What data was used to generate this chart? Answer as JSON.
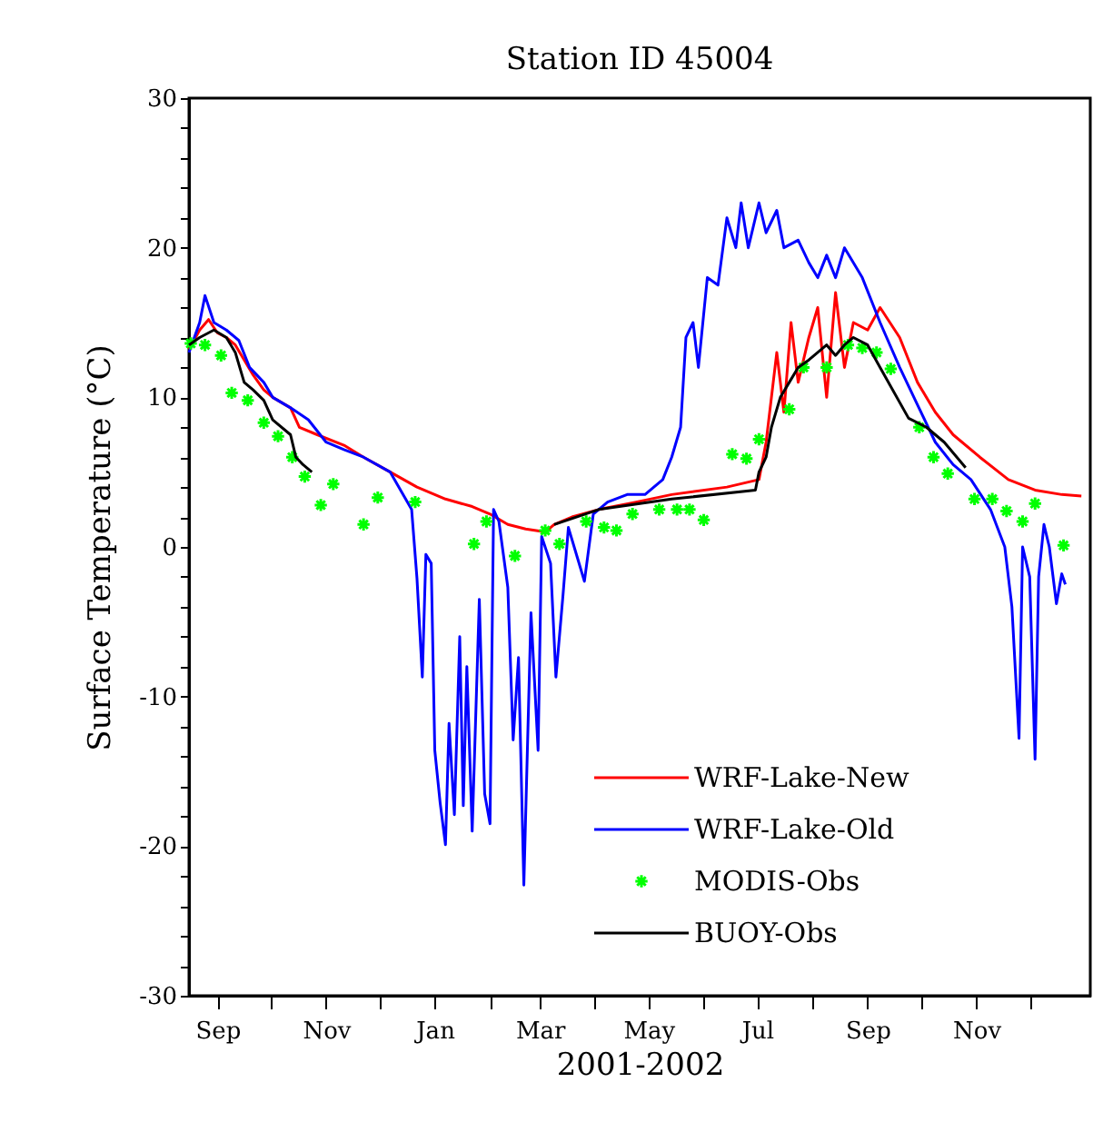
{
  "chart_data": {
    "type": "line",
    "title": "Station ID 45004",
    "xlabel": "2001-2002",
    "ylabel": "Surface Temperature (°C)",
    "xlim": [
      "2001-08-16",
      "2003-01-04"
    ],
    "ylim": [
      -30,
      30
    ],
    "xticks": [
      {
        "value": "2001-09-01",
        "label": "Sep"
      },
      {
        "value": "2001-10-01",
        "label": null
      },
      {
        "value": "2001-11-01",
        "label": "Nov"
      },
      {
        "value": "2001-12-01",
        "label": null
      },
      {
        "value": "2002-01-01",
        "label": "Jan"
      },
      {
        "value": "2002-02-01",
        "label": null
      },
      {
        "value": "2002-03-01",
        "label": "Mar"
      },
      {
        "value": "2002-04-01",
        "label": null
      },
      {
        "value": "2002-05-01",
        "label": "May"
      },
      {
        "value": "2002-06-01",
        "label": null
      },
      {
        "value": "2002-07-01",
        "label": "Jul"
      },
      {
        "value": "2002-08-01",
        "label": null
      },
      {
        "value": "2002-09-01",
        "label": "Sep"
      },
      {
        "value": "2002-10-01",
        "label": null
      },
      {
        "value": "2002-11-01",
        "label": "Nov"
      },
      {
        "value": "2002-12-01",
        "label": null
      }
    ],
    "yticks": [
      -30,
      {
        "value": -28,
        "label": null
      },
      {
        "value": -26,
        "label": null
      },
      {
        "value": -24,
        "label": null
      },
      {
        "value": -22,
        "label": null
      },
      -20,
      {
        "value": -18,
        "label": null
      },
      {
        "value": -16,
        "label": null
      },
      {
        "value": -14,
        "label": null
      },
      {
        "value": -12,
        "label": null
      },
      -10,
      {
        "value": -8,
        "label": null
      },
      {
        "value": -6,
        "label": null
      },
      {
        "value": -4,
        "label": null
      },
      {
        "value": -2,
        "label": null
      },
      0,
      {
        "value": 2,
        "label": null
      },
      {
        "value": 4,
        "label": null
      },
      {
        "value": 6,
        "label": null
      },
      {
        "value": 8,
        "label": null
      },
      10,
      {
        "value": 12,
        "label": null
      },
      {
        "value": 14,
        "label": null
      },
      {
        "value": 16,
        "label": null
      },
      {
        "value": 18,
        "label": null
      },
      20,
      {
        "value": 22,
        "label": null
      },
      {
        "value": 24,
        "label": null
      },
      {
        "value": 26,
        "label": null
      },
      {
        "value": 28,
        "label": null
      },
      30
    ],
    "grid": false,
    "legend": "bottom right",
    "series": [
      {
        "name": "WRF-Lake-New",
        "type": "line",
        "color": "#ff0000",
        "x": [
          "2001-08-16",
          "2001-08-22",
          "2001-08-27",
          "2001-09-01",
          "2001-09-06",
          "2001-09-11",
          "2001-09-16",
          "2001-09-21",
          "2001-09-27",
          "2001-10-02",
          "2001-10-12",
          "2001-10-17",
          "2001-10-27",
          "2001-11-11",
          "2001-11-22",
          "2001-12-07",
          "2001-12-22",
          "2002-01-07",
          "2002-01-22",
          "2002-02-01",
          "2002-02-11",
          "2002-02-21",
          "2002-03-04",
          "2002-03-09",
          "2002-03-19",
          "2002-04-03",
          "2002-04-24",
          "2002-05-14",
          "2002-06-14",
          "2002-07-02",
          "2002-07-06",
          "2002-07-12",
          "2002-07-16",
          "2002-07-20",
          "2002-07-24",
          "2002-07-30",
          "2002-08-04",
          "2002-08-09",
          "2002-08-14",
          "2002-08-19",
          "2002-08-24",
          "2002-09-01",
          "2002-09-08",
          "2002-09-19",
          "2002-09-29",
          "2002-10-09",
          "2002-10-19",
          "2002-11-03",
          "2002-11-19",
          "2002-12-04",
          "2002-12-19",
          "2002-12-30"
        ],
        "values": [
          13.2,
          14.5,
          15.2,
          14.3,
          14.0,
          13.5,
          12.5,
          11.5,
          10.5,
          10.0,
          9.3,
          8.0,
          7.5,
          6.8,
          6.0,
          5.0,
          4.0,
          3.2,
          2.7,
          2.2,
          1.5,
          1.2,
          1.0,
          1.5,
          2.0,
          2.5,
          3.0,
          3.5,
          4.0,
          4.5,
          7.0,
          13.0,
          9.0,
          15.0,
          11.0,
          14.0,
          16.0,
          10.0,
          17.0,
          12.0,
          15.0,
          14.5,
          16.0,
          14.0,
          11.0,
          9.0,
          7.5,
          6.0,
          4.5,
          3.8,
          3.5,
          3.4
        ]
      },
      {
        "name": "WRF-Lake-Old",
        "color": "#0000ff",
        "x": [
          "2001-08-16",
          "2001-08-22",
          "2001-08-25",
          "2001-08-30",
          "2001-09-06",
          "2001-09-13",
          "2001-09-19",
          "2001-09-27",
          "2001-10-02",
          "2001-10-12",
          "2001-10-22",
          "2001-11-01",
          "2001-11-11",
          "2001-11-22",
          "2001-12-07",
          "2001-12-19",
          "2001-12-22",
          "2001-12-25",
          "2001-12-27",
          "2001-12-30",
          "2002-01-01",
          "2002-01-04",
          "2002-01-07",
          "2002-01-09",
          "2002-01-12",
          "2002-01-15",
          "2002-01-17",
          "2002-01-19",
          "2002-01-22",
          "2002-01-26",
          "2002-01-29",
          "2002-02-01",
          "2002-02-03",
          "2002-02-06",
          "2002-02-11",
          "2002-02-14",
          "2002-02-17",
          "2002-02-20",
          "2002-02-24",
          "2002-02-28",
          "2002-03-02",
          "2002-03-07",
          "2002-03-10",
          "2002-03-14",
          "2002-03-17",
          "2002-03-22",
          "2002-03-26",
          "2002-03-31",
          "2002-04-08",
          "2002-04-19",
          "2002-04-29",
          "2002-05-09",
          "2002-05-14",
          "2002-05-19",
          "2002-05-22",
          "2002-05-26",
          "2002-05-29",
          "2002-06-03",
          "2002-06-09",
          "2002-06-14",
          "2002-06-19",
          "2002-06-22",
          "2002-06-26",
          "2002-07-02",
          "2002-07-06",
          "2002-07-12",
          "2002-07-16",
          "2002-07-24",
          "2002-07-30",
          "2002-08-04",
          "2002-08-09",
          "2002-08-14",
          "2002-08-19",
          "2002-08-29",
          "2002-09-08",
          "2002-09-19",
          "2002-09-29",
          "2002-10-09",
          "2002-10-19",
          "2002-10-29",
          "2002-11-09",
          "2002-11-17",
          "2002-11-21",
          "2002-11-25",
          "2002-11-27",
          "2002-12-01",
          "2002-12-04",
          "2002-12-06",
          "2002-12-09",
          "2002-12-12",
          "2002-12-16",
          "2002-12-19",
          "2002-12-21"
        ],
        "values": [
          13.0,
          15.0,
          16.8,
          15.0,
          14.5,
          13.8,
          12.0,
          11.0,
          10.0,
          9.3,
          8.5,
          7.0,
          6.5,
          6.0,
          5.0,
          2.5,
          -2.1,
          -8.7,
          -0.5,
          -1.1,
          -13.6,
          -17.1,
          -19.9,
          -11.8,
          -17.9,
          -6.0,
          -17.3,
          -8.0,
          -19.0,
          -3.5,
          -16.5,
          -18.5,
          2.5,
          1.7,
          -2.7,
          -12.9,
          -7.4,
          -22.6,
          -4.4,
          -13.6,
          0.7,
          -1.1,
          -8.7,
          -3.2,
          1.3,
          -0.7,
          -2.3,
          2.2,
          3.0,
          3.5,
          3.5,
          4.5,
          6.0,
          8.0,
          14.0,
          15.0,
          12.0,
          18.0,
          17.5,
          22.0,
          20.0,
          23.0,
          20.0,
          23.0,
          21.0,
          22.5,
          20.0,
          20.5,
          19.0,
          18.0,
          19.5,
          18.0,
          20.0,
          18.0,
          15.0,
          12.0,
          9.5,
          7.0,
          5.5,
          4.5,
          2.5,
          0.0,
          -4.0,
          -12.8,
          0.0,
          -2.0,
          -14.2,
          -2.0,
          1.5,
          0.0,
          -3.8,
          -1.8,
          -2.5
        ]
      },
      {
        "name": "MODIS-Obs",
        "type": "scatter",
        "marker": "cross",
        "color": "#00ff00",
        "x": [
          "2001-08-17",
          "2001-08-25",
          "2001-09-03",
          "2001-09-09",
          "2001-09-18",
          "2001-09-27",
          "2001-10-05",
          "2001-10-13",
          "2001-10-20",
          "2001-10-29",
          "2001-11-05",
          "2001-11-22",
          "2001-11-30",
          "2001-12-21",
          "2002-01-23",
          "2002-01-30",
          "2002-02-15",
          "2002-03-04",
          "2002-03-12",
          "2002-03-27",
          "2002-04-06",
          "2002-04-13",
          "2002-04-22",
          "2002-05-07",
          "2002-05-17",
          "2002-05-24",
          "2002-06-01",
          "2002-06-17",
          "2002-06-25",
          "2002-07-02",
          "2002-07-19",
          "2002-07-27",
          "2002-08-09",
          "2002-08-21",
          "2002-08-29",
          "2002-09-06",
          "2002-09-14",
          "2002-09-30",
          "2002-10-08",
          "2002-10-16",
          "2002-10-31",
          "2002-11-10",
          "2002-11-18",
          "2002-11-27",
          "2002-12-04",
          "2002-12-20"
        ],
        "values": [
          13.6,
          13.5,
          12.8,
          10.3,
          9.8,
          8.3,
          7.4,
          6.0,
          4.7,
          2.8,
          4.2,
          1.5,
          3.3,
          3.0,
          0.2,
          1.7,
          -0.6,
          1.1,
          0.2,
          1.7,
          1.3,
          1.1,
          2.2,
          2.5,
          2.5,
          2.5,
          1.8,
          6.2,
          5.9,
          7.2,
          9.2,
          12.0,
          12.0,
          13.5,
          13.3,
          13.0,
          11.9,
          8.0,
          6.0,
          4.9,
          3.2,
          3.2,
          2.4,
          1.7,
          2.9,
          0.1
        ]
      },
      {
        "name": "BUOY-Obs",
        "color": "#000000",
        "x": [
          "2001-08-16",
          "2001-08-22",
          "2001-08-30",
          "2001-09-06",
          "2001-09-11",
          "2001-09-16",
          "2001-09-21",
          "2001-09-27",
          "2001-10-02",
          "2001-10-12",
          "2001-10-15",
          "2001-10-19",
          "2001-10-24",
          "2002-01-01",
          "2002-03-09",
          "2002-04-03",
          "2002-05-14",
          "2002-06-30",
          "2002-07-02",
          "2002-07-06",
          "2002-07-09",
          "2002-07-14",
          "2002-07-19",
          "2002-07-24",
          "2002-07-30",
          "2002-08-04",
          "2002-08-09",
          "2002-08-14",
          "2002-08-19",
          "2002-08-24",
          "2002-09-01",
          "2002-09-08",
          "2002-09-24",
          "2002-10-04",
          "2002-10-14",
          "2002-10-26"
        ],
        "values": [
          13.5,
          14.0,
          14.5,
          14.0,
          13.0,
          11.0,
          10.5,
          9.8,
          8.5,
          7.5,
          6.0,
          5.5,
          5.0,
          null,
          1.5,
          2.5,
          3.2,
          3.8,
          5.0,
          6.0,
          8.0,
          10.0,
          11.0,
          12.0,
          12.5,
          13.0,
          13.5,
          12.8,
          13.5,
          14.0,
          13.5,
          12.0,
          8.6,
          8.0,
          7.0,
          5.3
        ]
      }
    ]
  }
}
